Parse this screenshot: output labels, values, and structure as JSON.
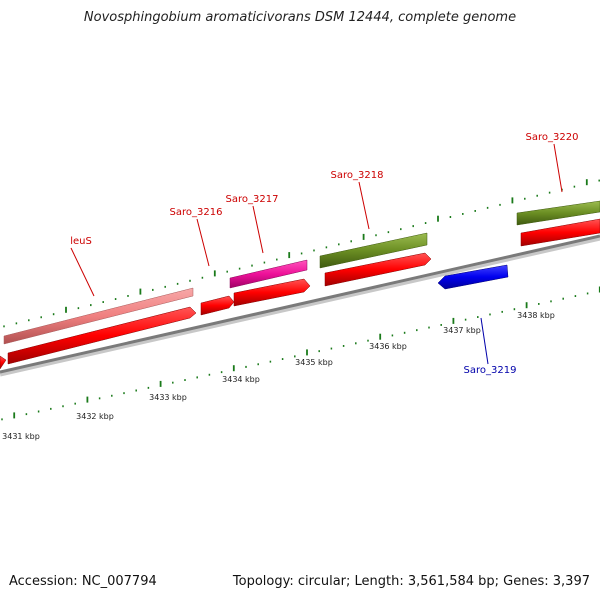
{
  "title": "Novosphingobium aromaticivorans DSM 12444, complete genome",
  "footer": {
    "accession": "Accession: NC_007794",
    "summary": "Topology: circular; Length: 3,561,584 bp; Genes: 3,397"
  },
  "axis_labels": [
    "3431 kbp",
    "3432 kbp",
    "3433 kbp",
    "3434 kbp",
    "3435 kbp",
    "3436 kbp",
    "3437 kbp",
    "3438 kbp"
  ],
  "genes": [
    {
      "name": "leuS",
      "color": "#cc0000"
    },
    {
      "name": "Saro_3216",
      "color": "#cc0000"
    },
    {
      "name": "Saro_3217",
      "color": "#cc0000"
    },
    {
      "name": "Saro_3218",
      "color": "#cc0000"
    },
    {
      "name": "Saro_3219",
      "color": "#0000aa"
    },
    {
      "name": "Saro_3220",
      "color": "#cc0000"
    }
  ],
  "colors": {
    "cds": "#ff0000",
    "gene_pink": "#f08080",
    "gene_magenta": "#ee1199",
    "gene_olive": "#6b8e23",
    "minus_strand": "#0000ee",
    "backbone": "#888888",
    "ticks": "#1a7a1a"
  }
}
